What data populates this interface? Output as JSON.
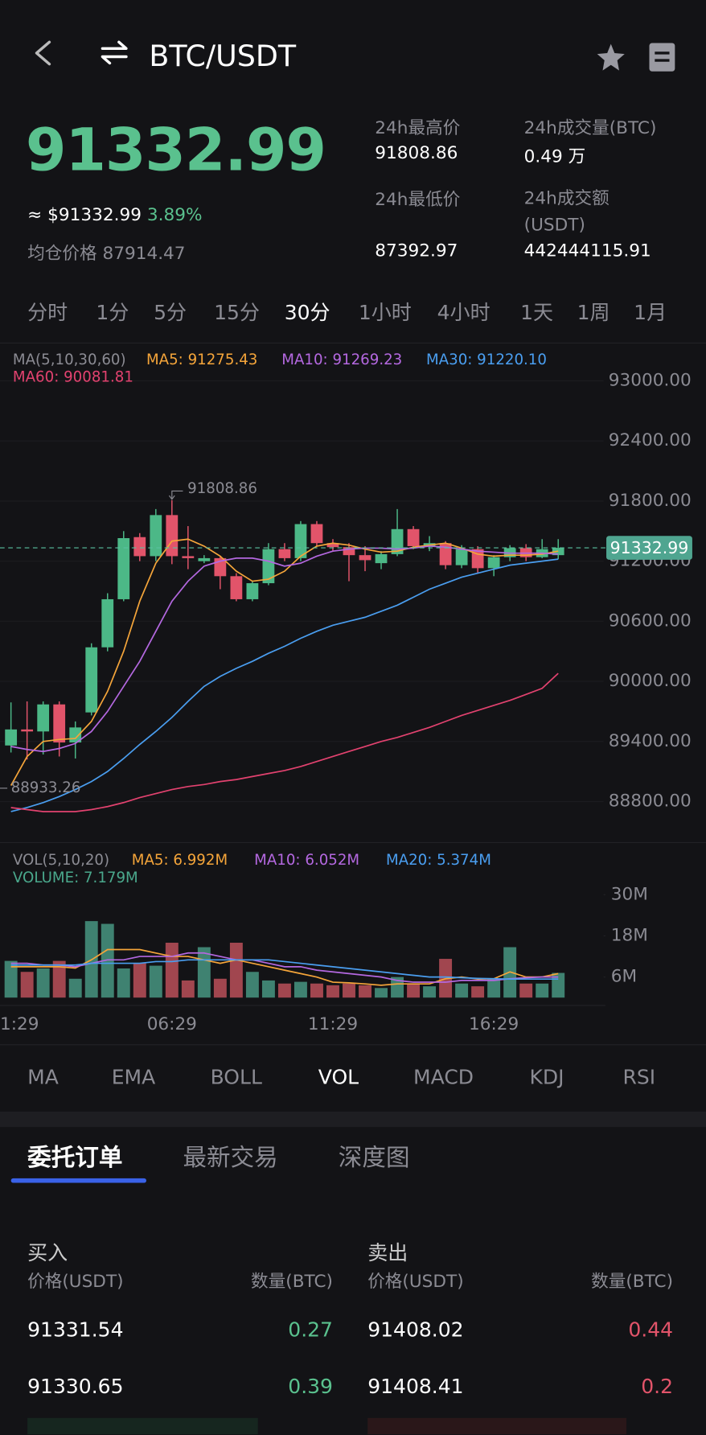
{
  "header": {
    "pair": "BTC/USDT"
  },
  "ticker": {
    "price": "91332.99",
    "usd": "≈ $91332.99",
    "change": "3.89%",
    "avg_label": "均仓价格",
    "avg_value": "87914.47",
    "stats": [
      {
        "label": "24h最高价",
        "value": "91808.86"
      },
      {
        "label": "24h成交量(BTC)",
        "value": "0.49 万"
      },
      {
        "label": "24h最低价",
        "value": "87392.97"
      },
      {
        "label": "24h成交额(USDT)",
        "value": "442444115.91"
      }
    ]
  },
  "intervals": [
    "分时",
    "1分",
    "5分",
    "15分",
    "30分",
    "1小时",
    "4小时",
    "1天",
    "1周",
    "1月"
  ],
  "chart_data": [
    {
      "type": "candlestick",
      "legend_title": "MA(5,10,30,60)",
      "categories": [
        "1:29",
        null,
        null,
        null,
        null,
        null,
        null,
        null,
        null,
        null,
        "06:29",
        null,
        null,
        null,
        null,
        null,
        null,
        null,
        null,
        null,
        "11:29",
        null,
        null,
        null,
        null,
        null,
        null,
        null,
        null,
        null,
        "16:29",
        null,
        null,
        null,
        null
      ],
      "open": [
        89360,
        89520,
        89500,
        89770,
        89390,
        89690,
        90340,
        90820,
        91440,
        91250,
        91660,
        91250,
        91200,
        91230,
        91050,
        90820,
        90980,
        91320,
        91230,
        91570,
        91380,
        91340,
        91260,
        91180,
        91270,
        91520,
        91350,
        91380,
        91160,
        91320,
        91130,
        91240,
        91330,
        91240,
        91260
      ],
      "high": [
        89790,
        89800,
        89800,
        89800,
        89600,
        90380,
        90880,
        91500,
        91480,
        91720,
        91808.86,
        91550,
        91260,
        91250,
        91080,
        91000,
        91380,
        91380,
        91600,
        91600,
        91420,
        91380,
        91350,
        91300,
        91720,
        91550,
        91450,
        91400,
        91360,
        91350,
        91260,
        91360,
        91370,
        91420,
        91420
      ],
      "low": [
        89290,
        89220,
        89270,
        89250,
        89230,
        89660,
        90300,
        90800,
        91200,
        91200,
        91170,
        91120,
        91180,
        90920,
        90800,
        90800,
        90960,
        91200,
        91200,
        91350,
        91300,
        91000,
        91100,
        91120,
        91250,
        91320,
        91300,
        91120,
        91130,
        91080,
        91050,
        91200,
        91200,
        91230,
        91220
      ],
      "close": [
        89520,
        89500,
        89770,
        89390,
        89540,
        90340,
        90820,
        91430,
        91250,
        91660,
        91250,
        91230,
        91230,
        91050,
        90820,
        90980,
        91320,
        91230,
        91570,
        91380,
        91340,
        91260,
        91210,
        91270,
        91520,
        91350,
        91380,
        91160,
        91320,
        91130,
        91240,
        91330,
        91240,
        91320,
        91332.99
      ],
      "up_color": "#4cb887",
      "down_color": "#e2546a",
      "series": [
        {
          "name": "MA5: 91275.43",
          "color": "#f5a53a",
          "values": [
            88960,
            89250,
            89400,
            89420,
            89430,
            89600,
            89900,
            90300,
            90800,
            91180,
            91400,
            91420,
            91350,
            91250,
            91100,
            91000,
            91020,
            91100,
            91250,
            91350,
            91380,
            91360,
            91320,
            91290,
            91300,
            91340,
            91360,
            91380,
            91330,
            91270,
            91250,
            91260,
            91260,
            91270,
            91300
          ]
        },
        {
          "name": "MA10: 91269.23",
          "color": "#b468e0",
          "values": [
            89350,
            89320,
            89300,
            89330,
            89380,
            89500,
            89700,
            89950,
            90200,
            90500,
            90800,
            91000,
            91150,
            91200,
            91230,
            91230,
            91200,
            91150,
            91180,
            91250,
            91300,
            91320,
            91330,
            91330,
            91320,
            91330,
            91350,
            91340,
            91320,
            91300,
            91290,
            91280,
            91280,
            91280,
            91270
          ]
        },
        {
          "name": "MA30: 91220.10",
          "color": "#4a9ef0",
          "values": [
            88700,
            88740,
            88790,
            88850,
            88920,
            89000,
            89100,
            89230,
            89370,
            89500,
            89640,
            89800,
            89950,
            90050,
            90130,
            90200,
            90280,
            90350,
            90430,
            90500,
            90560,
            90600,
            90640,
            90700,
            90760,
            90840,
            90920,
            90980,
            91040,
            91080,
            91120,
            91160,
            91180,
            91200,
            91220
          ]
        },
        {
          "name": "MA60: 90081.81",
          "color": "#e2426f",
          "values": [
            88740,
            88720,
            88700,
            88700,
            88700,
            88720,
            88750,
            88790,
            88840,
            88880,
            88920,
            88950,
            88970,
            89000,
            89020,
            89050,
            89080,
            89110,
            89150,
            89200,
            89250,
            89300,
            89350,
            89400,
            89440,
            89490,
            89540,
            89600,
            89660,
            89710,
            89760,
            89810,
            89870,
            89930,
            90080
          ]
        }
      ],
      "ylim": [
        88400,
        93350
      ],
      "yticks": [
        {
          "value": 88800,
          "label": "88800.00"
        },
        {
          "value": 89400,
          "label": "89400.00"
        },
        {
          "value": 90000,
          "label": "90000.00"
        },
        {
          "value": 90600,
          "label": "90600.00"
        },
        {
          "value": 91200,
          "label": "91200.00"
        },
        {
          "value": 91800,
          "label": "91800.00"
        },
        {
          "value": 92400,
          "label": "92400.00"
        },
        {
          "value": 93000,
          "label": "93000.00"
        }
      ],
      "grid": true,
      "last_price": {
        "value": 91332.99,
        "label": "91332.99"
      },
      "annotations": [
        {
          "value": 91808.86,
          "label": "91808.86"
        },
        {
          "value": 88933.26,
          "label": "88933.26"
        }
      ]
    },
    {
      "type": "bar",
      "legend_title": "VOL(5,10,20)",
      "volume_label": "VOLUME: 7.179M",
      "values": [
        10.7,
        7.5,
        8.5,
        10.7,
        5.5,
        22.3,
        21.5,
        8.5,
        10.1,
        9.3,
        16,
        5,
        14.7,
        5.5,
        16,
        7.5,
        5,
        4.1,
        4.6,
        4.1,
        3.6,
        4.1,
        3.6,
        2.8,
        6,
        4.1,
        3.3,
        11.3,
        4.1,
        3.3,
        5.5,
        14.7,
        4.1,
        4.1,
        7.2
      ],
      "up_color": "#3f8271",
      "down_color": "#a1464f",
      "series": [
        {
          "name": "MA5: 6.992M",
          "color": "#f5a53a",
          "values": [
            9,
            9,
            9,
            9,
            8.6,
            11,
            14,
            14,
            14,
            13,
            12,
            12,
            11,
            10,
            11,
            10,
            9,
            8,
            7,
            6,
            4.5,
            4.3,
            4,
            3.6,
            4,
            4,
            4,
            5.5,
            6,
            5.4,
            5.5,
            7.5,
            6,
            6,
            7
          ]
        },
        {
          "name": "MA10: 6.052M",
          "color": "#b468e0",
          "values": [
            10,
            10,
            9.5,
            9.5,
            9,
            10,
            11,
            11,
            12,
            12,
            12,
            13,
            13,
            12,
            11,
            11,
            10,
            9,
            9,
            8,
            7.5,
            7,
            6.5,
            6,
            5,
            4.5,
            4.5,
            4.5,
            5,
            5,
            5,
            5.5,
            5.8,
            6,
            6
          ]
        },
        {
          "name": "MA20: 5.374M",
          "color": "#4a9ef0",
          "values": [
            9.5,
            9.5,
            9.5,
            9.5,
            9.5,
            10,
            10,
            10,
            10,
            10.5,
            10.5,
            11,
            11,
            11,
            11,
            11,
            11,
            10.5,
            10,
            9.5,
            9,
            8.5,
            8,
            7.5,
            7,
            6.5,
            6,
            6,
            5.8,
            5.6,
            5.5,
            5.4,
            5.4,
            5.4,
            5.4
          ]
        }
      ],
      "ylim": [
        0,
        35
      ],
      "yticks": [
        {
          "value": 6,
          "label": "6M"
        },
        {
          "value": 18,
          "label": "18M"
        },
        {
          "value": 30,
          "label": "30M"
        }
      ]
    }
  ],
  "indicators": [
    "MA",
    "EMA",
    "BOLL",
    "VOL",
    "MACD",
    "KDJ",
    "RSI"
  ],
  "tabs": [
    "委托订单",
    "最新交易",
    "深度图"
  ],
  "orderbook": {
    "buy_title": "买入",
    "sell_title": "卖出",
    "price_header": "价格(USDT)",
    "qty_header": "数量(BTC)",
    "buy": [
      [
        "91331.54",
        "0.27"
      ],
      [
        "91330.65",
        "0.39"
      ]
    ],
    "sell": [
      [
        "91408.02",
        "0.44"
      ],
      [
        "91408.41",
        "0.2"
      ]
    ]
  }
}
